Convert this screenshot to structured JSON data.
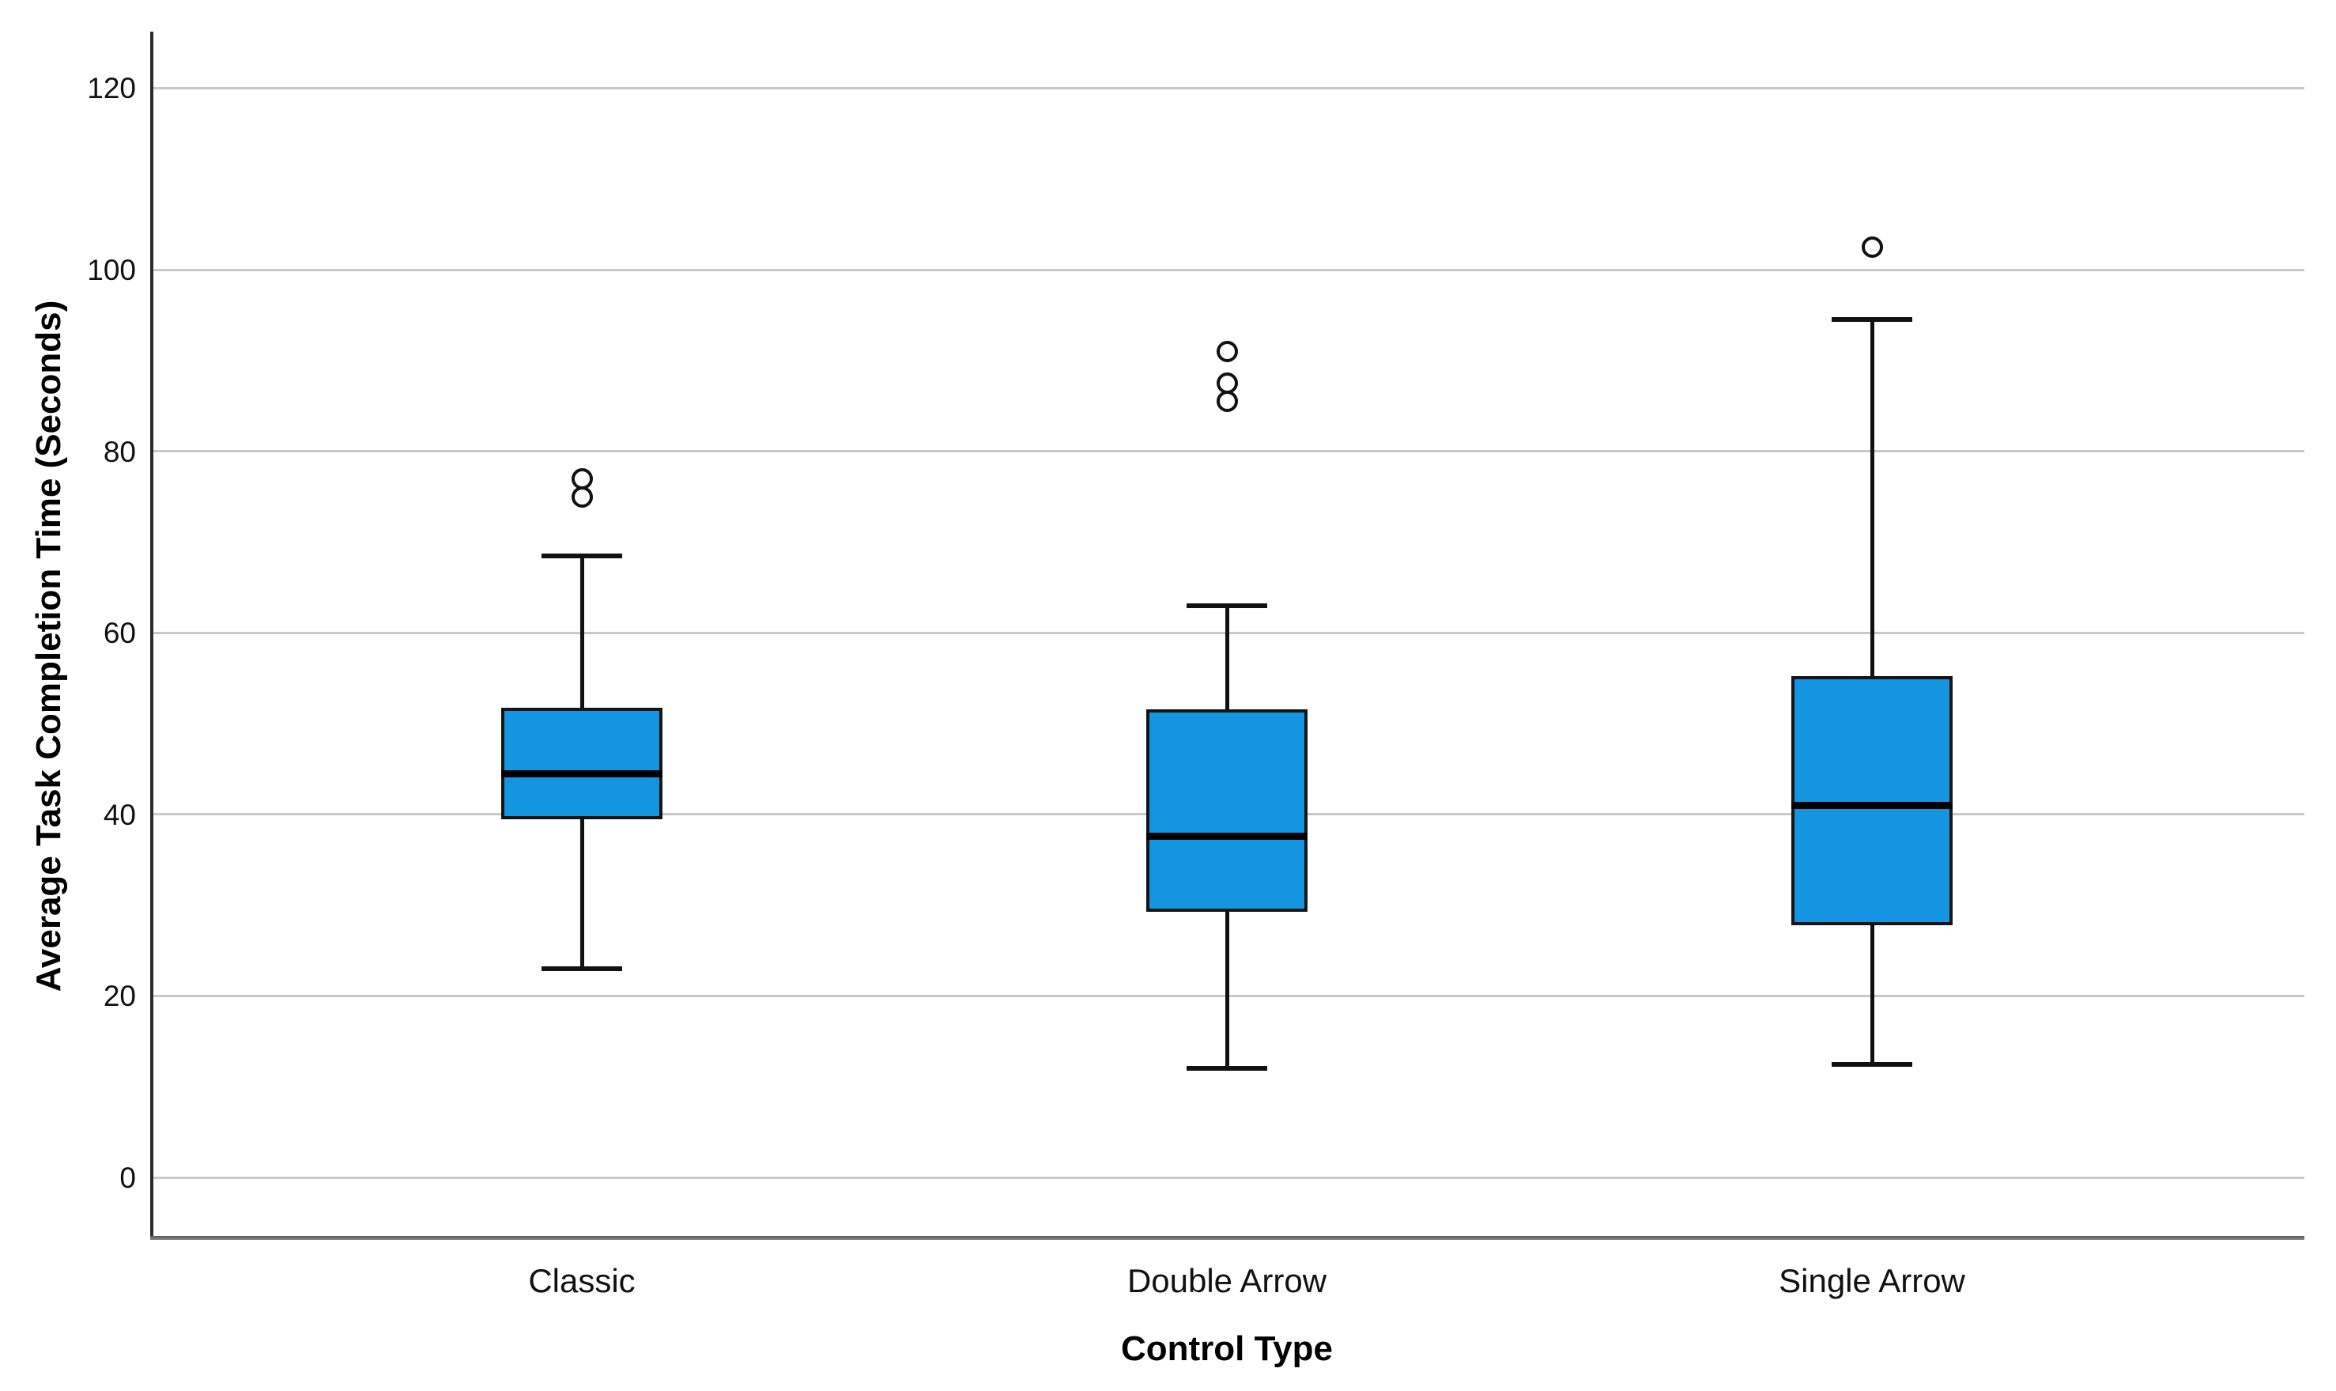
{
  "chart_data": {
    "type": "boxplot",
    "title": "",
    "xlabel": "Control Type",
    "ylabel": "Average Task Completion Time (Seconds)",
    "categories": [
      "Classic",
      "Double Arrow",
      "Single Arrow"
    ],
    "y_ticks": [
      0,
      20,
      40,
      60,
      80,
      100,
      120
    ],
    "ylim": [
      -6.5,
      126
    ],
    "grid": "horizontal-only",
    "legend": "none",
    "box_fill_color": "#1495e2",
    "box_border_color": "#141414",
    "gridline_color": "#c8c8c8",
    "series": [
      {
        "name": "Classic",
        "whisker_low": 23,
        "q1": 39.5,
        "median": 44.5,
        "q3": 51.7,
        "whisker_high": 68.5,
        "outliers": [
          75,
          77
        ]
      },
      {
        "name": "Double Arrow",
        "whisker_low": 12,
        "q1": 29.3,
        "median": 37.6,
        "q3": 51.6,
        "whisker_high": 63,
        "outliers": [
          85.5,
          87.5,
          91
        ]
      },
      {
        "name": "Single Arrow",
        "whisker_low": 12.5,
        "q1": 27.8,
        "median": 41,
        "q3": 55.2,
        "whisker_high": 94.5,
        "outliers": [
          102.5
        ]
      }
    ]
  }
}
